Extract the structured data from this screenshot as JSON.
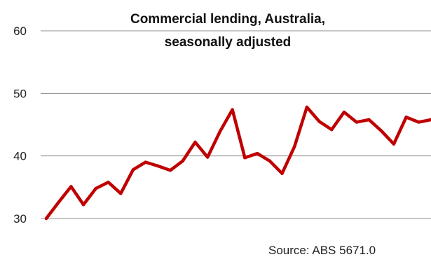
{
  "chart_data": {
    "type": "line",
    "title_lines": [
      "Commercial lending, Australia,",
      "seasonally adjusted"
    ],
    "xlabel": "",
    "ylabel": "",
    "ylim": [
      30,
      60
    ],
    "yticks": [
      30,
      40,
      50,
      60
    ],
    "grid": "horizontal",
    "legend": "none",
    "source": "Source:  ABS 5671.0",
    "series": [
      {
        "color": "#c00000",
        "values": [
          30,
          32.6,
          35.1,
          32.2,
          34.8,
          35.8,
          34.0,
          37.8,
          39.0,
          38.4,
          37.7,
          39.2,
          42.2,
          39.8,
          43.9,
          47.4,
          39.7,
          40.4,
          39.2,
          37.2,
          41.5,
          47.8,
          45.5,
          44.2,
          47.0,
          45.4,
          45.8,
          44.0,
          41.9,
          46.2,
          45.4,
          45.8
        ]
      }
    ]
  },
  "colors": {
    "line": "#c00000",
    "grid": "#8c8c8c"
  }
}
